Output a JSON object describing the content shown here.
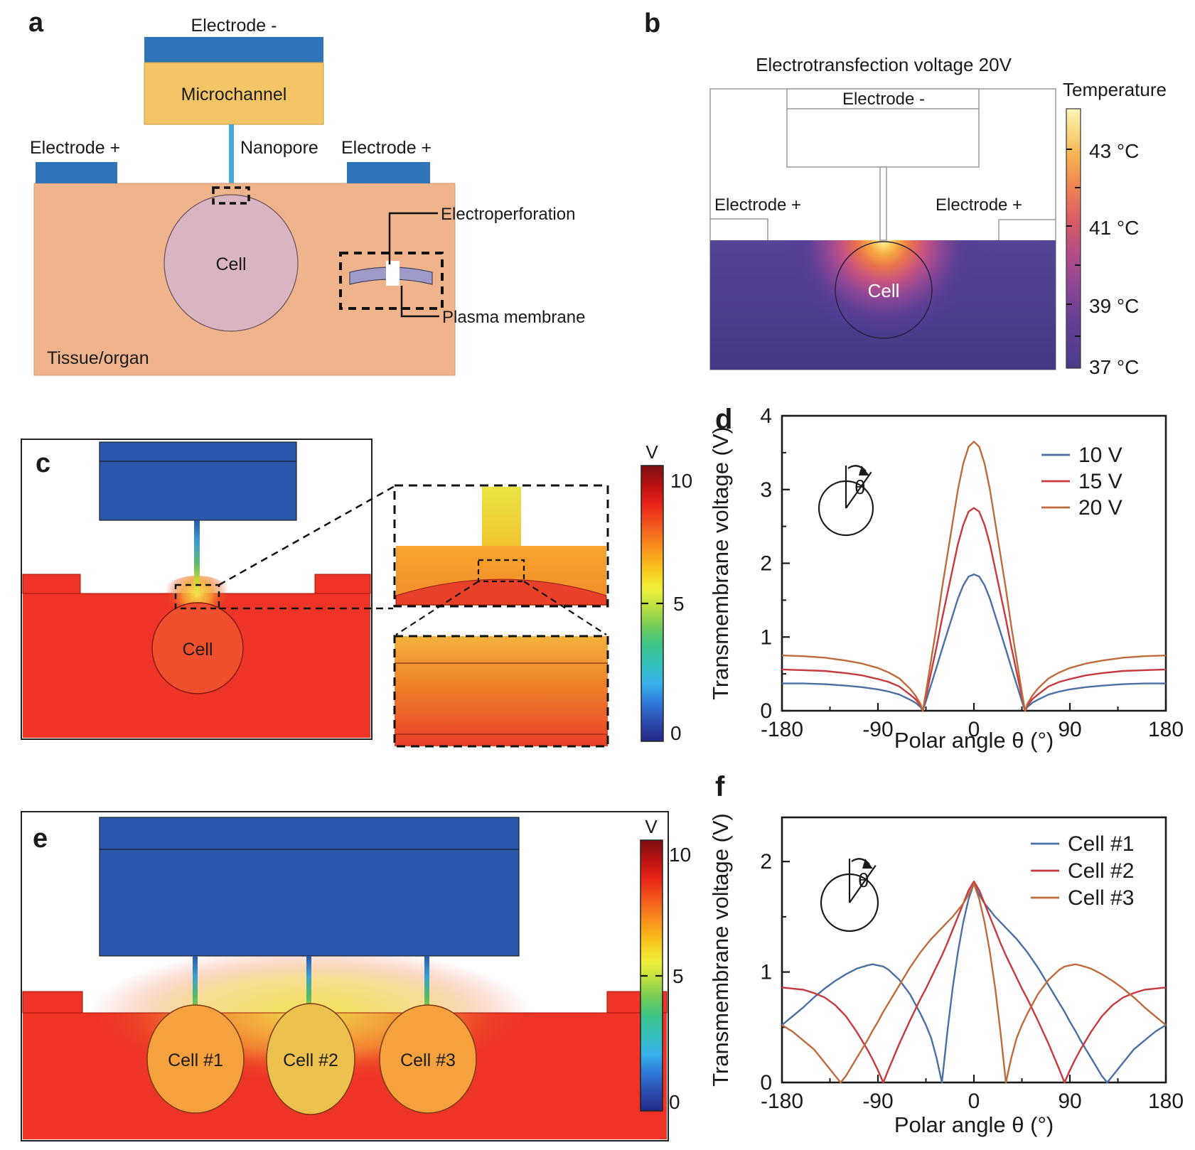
{
  "palette": {
    "electrode_blue": "#2f74b9",
    "block_blue": "#2a58ab",
    "microchannel_yellow": "#f4c566",
    "nanopore_blue": "#4aa8d8",
    "tissue_peach": "#f0b48c",
    "cell_pink": "#d8b5c1",
    "membrane_purple": "#9e9bca",
    "tissue_red": "#ee3426",
    "cell_red": "#f04f2e",
    "tissue_purple": "#4f3e99",
    "cell_orange": "#f5a13d",
    "cell_yellow": "#ecc14e",
    "series_blue": "#4a6fa5",
    "series_red": "#c8383f",
    "series_orange": "#bd6b3d",
    "text": "#1a1a1a"
  },
  "panels": {
    "a": {
      "label": "a",
      "electrode_neg": "Electrode -",
      "microchannel": "Microchannel",
      "nanopore": "Nanopore",
      "electrode_pos_left": "Electrode +",
      "electrode_pos_right": "Electrode +",
      "cell": "Cell",
      "tissue": "Tissue/organ",
      "electroperforation": "Electroperforation",
      "plasma_membrane": "Plasma membrane"
    },
    "b": {
      "label": "b",
      "title": "Electrotransfection voltage 20V",
      "electrode_neg": "Electrode -",
      "electrode_pos_left": "Electrode +",
      "electrode_pos_right": "Electrode +",
      "cell": "Cell",
      "colorbar": {
        "title": "Temperature",
        "ticks": [
          "43 °C",
          "41 °C",
          "39 °C",
          "37 °C"
        ]
      }
    },
    "c": {
      "label": "c",
      "cell": "Cell",
      "colorbar": {
        "title": "V",
        "ticks": [
          "10",
          "5",
          "0"
        ]
      }
    },
    "e": {
      "label": "e",
      "cells": [
        "Cell #1",
        "Cell #2",
        "Cell #3"
      ],
      "colorbar": {
        "title": "V",
        "ticks": [
          "10",
          "5",
          "0"
        ]
      }
    }
  },
  "chart_data": [
    {
      "id": "chart-d",
      "panel_label": "d",
      "type": "line",
      "xlabel": "Polar angle θ (°)",
      "ylabel": "Transmembrane voltage (V)",
      "xlim": [
        -180,
        180
      ],
      "ylim": [
        0,
        4
      ],
      "xticks": [
        -180,
        -90,
        0,
        90,
        180
      ],
      "yticks": [
        0,
        1,
        2,
        3,
        4
      ],
      "xminor": [
        -135,
        -45,
        45,
        135
      ],
      "yminor": [
        0.5,
        1.5,
        2.5,
        3.5
      ],
      "grid": false,
      "legend_position": "top-right",
      "inset_label": "θ",
      "series": [
        {
          "name": "10 V",
          "color": "#4a6fa5",
          "x": [
            -180,
            -160,
            -140,
            -120,
            -105,
            -90,
            -80,
            -70,
            -60,
            -55,
            -50,
            -48,
            -45,
            -40,
            -35,
            -30,
            -25,
            -20,
            -15,
            -10,
            -5,
            0,
            5,
            10,
            15,
            20,
            25,
            30,
            35,
            40,
            45,
            48,
            50,
            55,
            60,
            70,
            80,
            90,
            105,
            120,
            140,
            160,
            180
          ],
          "y": [
            0.37,
            0.37,
            0.36,
            0.34,
            0.32,
            0.29,
            0.26,
            0.22,
            0.15,
            0.11,
            0.05,
            0,
            0.13,
            0.36,
            0.59,
            0.83,
            1.06,
            1.29,
            1.52,
            1.7,
            1.82,
            1.85,
            1.82,
            1.7,
            1.52,
            1.29,
            1.06,
            0.83,
            0.59,
            0.36,
            0.13,
            0,
            0.05,
            0.11,
            0.15,
            0.22,
            0.26,
            0.29,
            0.32,
            0.34,
            0.36,
            0.37,
            0.37
          ]
        },
        {
          "name": "15 V",
          "color": "#c8383f",
          "x": [
            -180,
            -160,
            -140,
            -120,
            -105,
            -90,
            -80,
            -70,
            -60,
            -55,
            -50,
            -48,
            -45,
            -40,
            -35,
            -30,
            -25,
            -20,
            -15,
            -10,
            -5,
            0,
            5,
            10,
            15,
            20,
            25,
            30,
            35,
            40,
            45,
            48,
            50,
            55,
            60,
            70,
            80,
            90,
            105,
            120,
            140,
            160,
            180
          ],
          "y": [
            0.56,
            0.55,
            0.54,
            0.51,
            0.48,
            0.43,
            0.39,
            0.33,
            0.22,
            0.16,
            0.07,
            0,
            0.19,
            0.53,
            0.87,
            1.24,
            1.58,
            1.92,
            2.26,
            2.52,
            2.7,
            2.75,
            2.7,
            2.52,
            2.26,
            1.92,
            1.58,
            1.24,
            0.87,
            0.53,
            0.19,
            0,
            0.07,
            0.16,
            0.22,
            0.33,
            0.39,
            0.43,
            0.48,
            0.51,
            0.54,
            0.55,
            0.56
          ]
        },
        {
          "name": "20 V",
          "color": "#bd6b3d",
          "x": [
            -180,
            -160,
            -140,
            -120,
            -105,
            -90,
            -80,
            -70,
            -60,
            -55,
            -50,
            -48,
            -45,
            -40,
            -35,
            -30,
            -25,
            -20,
            -15,
            -10,
            -5,
            0,
            5,
            10,
            15,
            20,
            25,
            30,
            35,
            40,
            45,
            48,
            50,
            55,
            60,
            70,
            80,
            90,
            105,
            120,
            140,
            160,
            180
          ],
          "y": [
            0.75,
            0.74,
            0.72,
            0.68,
            0.64,
            0.58,
            0.52,
            0.44,
            0.3,
            0.21,
            0.09,
            0,
            0.25,
            0.7,
            1.15,
            1.65,
            2.1,
            2.55,
            3.0,
            3.35,
            3.58,
            3.65,
            3.58,
            3.35,
            3.0,
            2.55,
            2.1,
            1.65,
            1.15,
            0.7,
            0.25,
            0,
            0.09,
            0.21,
            0.3,
            0.44,
            0.52,
            0.58,
            0.64,
            0.68,
            0.72,
            0.74,
            0.75
          ]
        }
      ]
    },
    {
      "id": "chart-f",
      "panel_label": "f",
      "type": "line",
      "xlabel": "Polar angle θ (°)",
      "ylabel": "Transmembrane voltage (V)",
      "xlim": [
        -180,
        180
      ],
      "ylim": [
        0,
        2.4
      ],
      "xticks": [
        -180,
        -90,
        0,
        90,
        180
      ],
      "yticks": [
        0,
        1,
        2
      ],
      "xminor": [
        -135,
        -45,
        45,
        135
      ],
      "yminor": [
        0.5,
        1.5
      ],
      "grid": false,
      "legend_position": "top-right",
      "inset_label": "θ",
      "series": [
        {
          "name": "Cell #1",
          "color": "#4a6fa5",
          "x": [
            -180,
            -170,
            -160,
            -150,
            -140,
            -130,
            -125,
            -120,
            -110,
            -100,
            -95,
            -90,
            -85,
            -80,
            -70,
            -60,
            -50,
            -45,
            -40,
            -35,
            -30,
            -25,
            -20,
            -15,
            -10,
            -5,
            0,
            5,
            10,
            15,
            20,
            25,
            30,
            35,
            40,
            45,
            50,
            60,
            70,
            80,
            85,
            90,
            95,
            100,
            110,
            120,
            125,
            130,
            140,
            150,
            160,
            170,
            180
          ],
          "y": [
            0.52,
            0.6,
            0.68,
            0.77,
            0.85,
            0.92,
            0.95,
            0.98,
            1.03,
            1.06,
            1.07,
            1.06,
            1.05,
            1.02,
            0.93,
            0.8,
            0.62,
            0.52,
            0.4,
            0.22,
            0,
            0.45,
            0.85,
            1.18,
            1.45,
            1.66,
            1.8,
            1.7,
            1.62,
            1.56,
            1.5,
            1.45,
            1.4,
            1.35,
            1.3,
            1.24,
            1.18,
            1.04,
            0.88,
            0.72,
            0.64,
            0.55,
            0.47,
            0.38,
            0.22,
            0.06,
            0,
            0.06,
            0.18,
            0.3,
            0.38,
            0.46,
            0.52
          ]
        },
        {
          "name": "Cell #2",
          "color": "#c8383f",
          "x": [
            -180,
            -170,
            -160,
            -150,
            -140,
            -130,
            -125,
            -120,
            -110,
            -100,
            -95,
            -90,
            -85,
            -80,
            -70,
            -60,
            -50,
            -45,
            -40,
            -35,
            -30,
            -25,
            -20,
            -15,
            -10,
            -5,
            0,
            5,
            10,
            15,
            20,
            25,
            30,
            35,
            40,
            45,
            50,
            60,
            70,
            80,
            85,
            90,
            95,
            100,
            110,
            120,
            125,
            130,
            140,
            150,
            160,
            170,
            180
          ],
          "y": [
            0.86,
            0.85,
            0.84,
            0.81,
            0.77,
            0.7,
            0.65,
            0.6,
            0.46,
            0.3,
            0.21,
            0.11,
            0,
            0.12,
            0.35,
            0.56,
            0.76,
            0.85,
            0.95,
            1.05,
            1.15,
            1.26,
            1.38,
            1.5,
            1.62,
            1.74,
            1.82,
            1.74,
            1.62,
            1.5,
            1.38,
            1.26,
            1.15,
            1.05,
            0.95,
            0.85,
            0.76,
            0.56,
            0.35,
            0.12,
            0,
            0.11,
            0.21,
            0.3,
            0.46,
            0.6,
            0.65,
            0.7,
            0.77,
            0.81,
            0.84,
            0.85,
            0.86
          ]
        },
        {
          "name": "Cell #3",
          "color": "#bd6b3d",
          "x": [
            -180,
            -170,
            -160,
            -150,
            -140,
            -130,
            -125,
            -120,
            -110,
            -100,
            -95,
            -90,
            -85,
            -80,
            -70,
            -60,
            -50,
            -45,
            -40,
            -35,
            -30,
            -25,
            -20,
            -15,
            -10,
            -5,
            0,
            5,
            10,
            15,
            20,
            25,
            30,
            35,
            40,
            45,
            50,
            60,
            70,
            80,
            85,
            90,
            95,
            100,
            110,
            120,
            125,
            130,
            140,
            150,
            160,
            170,
            180
          ],
          "y": [
            0.52,
            0.46,
            0.38,
            0.3,
            0.18,
            0.06,
            0,
            0.06,
            0.22,
            0.38,
            0.47,
            0.55,
            0.64,
            0.72,
            0.88,
            1.04,
            1.18,
            1.24,
            1.3,
            1.35,
            1.4,
            1.45,
            1.5,
            1.56,
            1.62,
            1.7,
            1.8,
            1.66,
            1.45,
            1.18,
            0.85,
            0.45,
            0,
            0.22,
            0.4,
            0.52,
            0.62,
            0.8,
            0.93,
            1.02,
            1.05,
            1.06,
            1.07,
            1.06,
            1.03,
            0.98,
            0.95,
            0.92,
            0.85,
            0.77,
            0.68,
            0.6,
            0.52
          ]
        }
      ]
    }
  ]
}
